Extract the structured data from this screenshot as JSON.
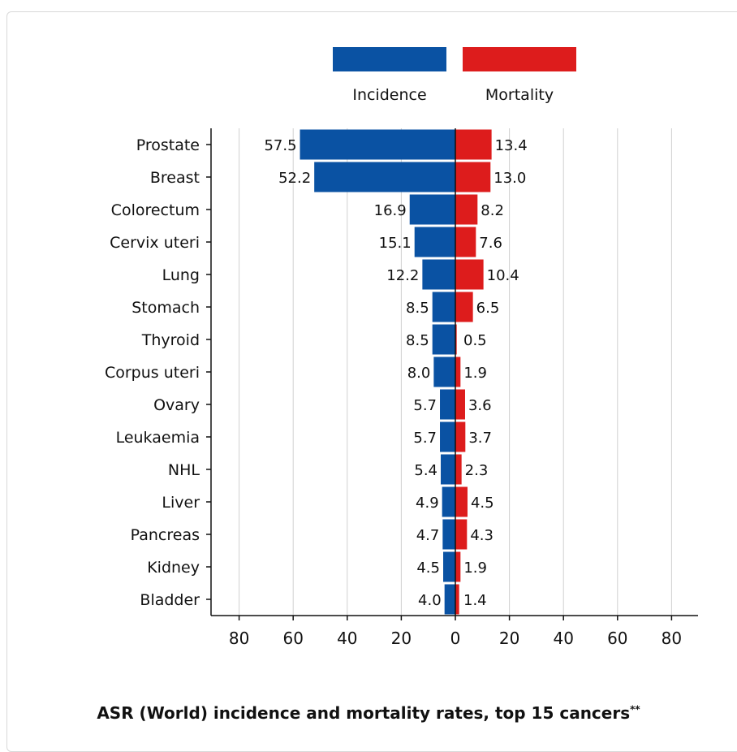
{
  "chart_data": {
    "type": "bar",
    "orientation": "horizontal-diverging",
    "title": "ASR (World) incidence and mortality rates, top 15 cancers",
    "title_sup": "**",
    "categories": [
      "Prostate",
      "Breast",
      "Colorectum",
      "Cervix uteri",
      "Lung",
      "Stomach",
      "Thyroid",
      "Corpus uteri",
      "Ovary",
      "Leukaemia",
      "NHL",
      "Liver",
      "Pancreas",
      "Kidney",
      "Bladder"
    ],
    "series": [
      {
        "name": "Incidence",
        "color": "#0a52a3",
        "values": [
          57.5,
          52.2,
          16.9,
          15.1,
          12.2,
          8.5,
          8.5,
          8.0,
          5.7,
          5.7,
          5.4,
          4.9,
          4.7,
          4.5,
          4.0
        ],
        "labels": [
          "57.5",
          "52.2",
          "16.9",
          "15.1",
          "12.2",
          "8.5",
          "8.5",
          "8.0",
          "5.7",
          "5.7",
          "5.4",
          "4.9",
          "4.7",
          "4.5",
          "4.0"
        ]
      },
      {
        "name": "Mortality",
        "color": "#dd1c1c",
        "values": [
          13.4,
          13.0,
          8.2,
          7.6,
          10.4,
          6.5,
          0.5,
          1.9,
          3.6,
          3.7,
          2.3,
          4.5,
          4.3,
          1.9,
          1.4
        ],
        "labels": [
          "13.4",
          "13.0",
          "8.2",
          "7.6",
          "10.4",
          "6.5",
          "0.5",
          "1.9",
          "3.6",
          "3.7",
          "2.3",
          "4.5",
          "4.3",
          "1.9",
          "1.4"
        ]
      }
    ],
    "xlim": [
      -90,
      90
    ],
    "xticks": [
      -80,
      -60,
      -40,
      -20,
      0,
      20,
      40,
      60,
      80
    ],
    "xtick_labels": [
      "80",
      "60",
      "40",
      "20",
      "0",
      "20",
      "40",
      "60",
      "80"
    ],
    "grid": true,
    "legend_position": "top-center"
  }
}
